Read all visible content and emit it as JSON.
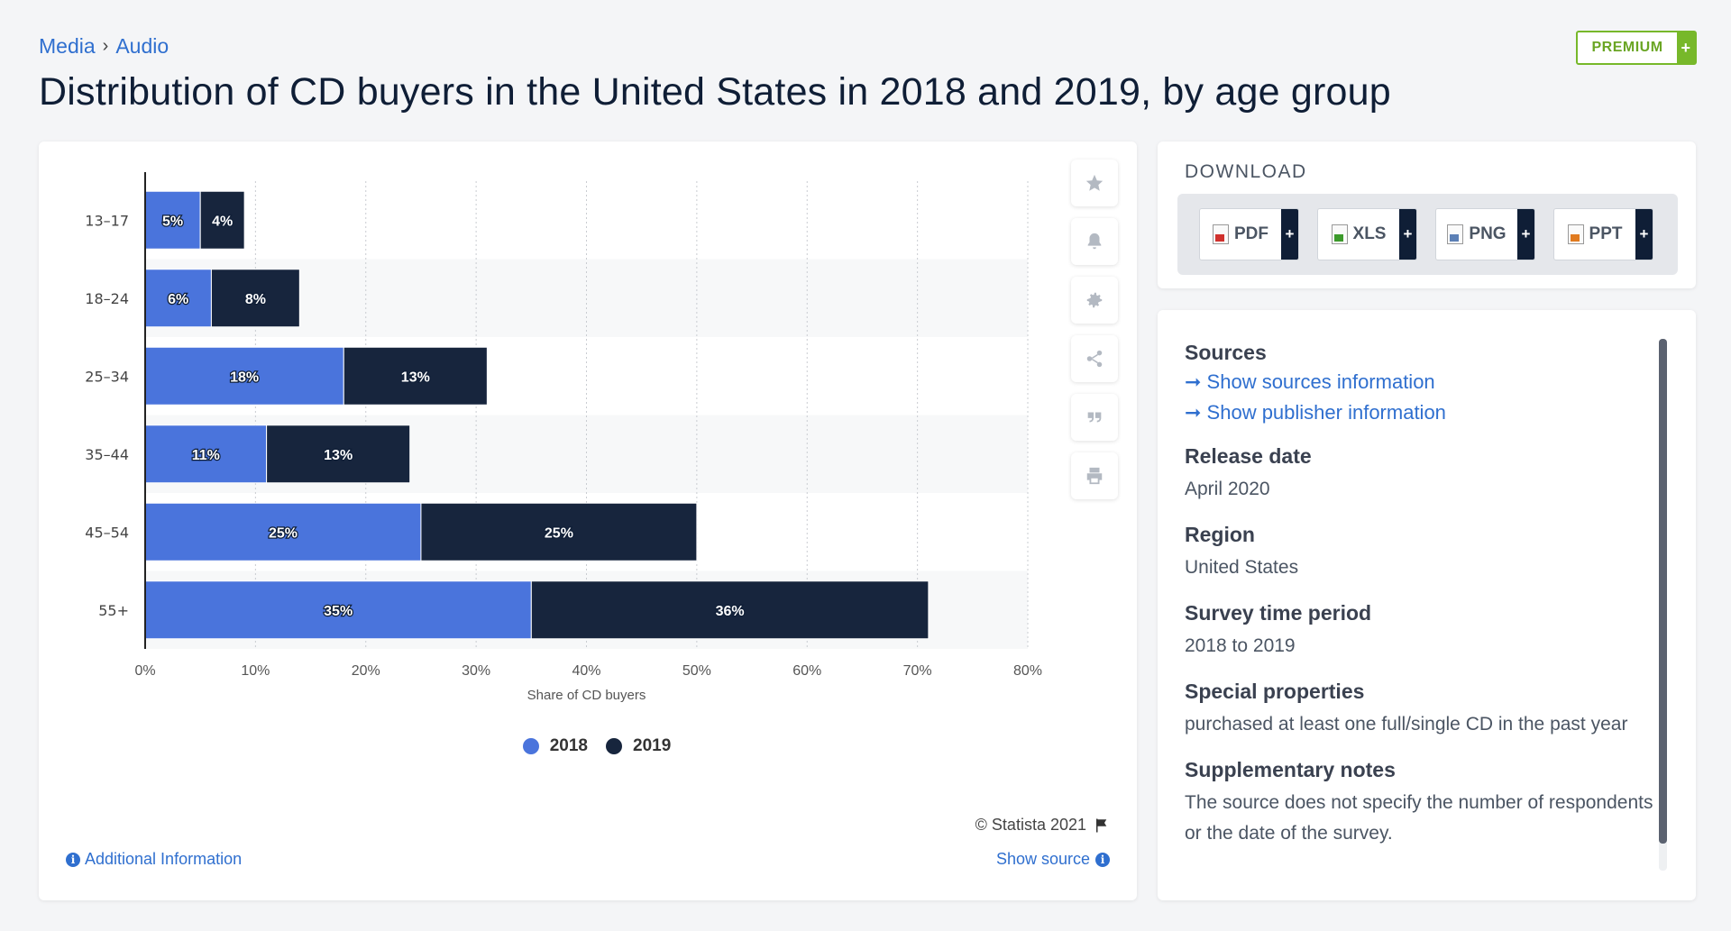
{
  "breadcrumb": {
    "level1": "Media",
    "separator": "›",
    "level2": "Audio"
  },
  "premium": {
    "label": "PREMIUM",
    "plus": "+"
  },
  "title": "Distribution of CD buyers in the United States in 2018 and 2019, by age group",
  "chart_data": {
    "type": "bar",
    "orientation": "horizontal",
    "stacked": true,
    "categories": [
      "13-17",
      "18-24",
      "25-34",
      "35-44",
      "45-54",
      "55+"
    ],
    "series": [
      {
        "name": "2018",
        "values": [
          5,
          6,
          18,
          11,
          25,
          35
        ],
        "labels": [
          "5%",
          "6%",
          "18%",
          "11%",
          "25%",
          "35%"
        ],
        "color": "#4a74dc"
      },
      {
        "name": "2019",
        "values": [
          4,
          8,
          13,
          13,
          25,
          36
        ],
        "labels": [
          "4%",
          "8%",
          "13%",
          "13%",
          "25%",
          "36%"
        ],
        "color": "#17253d"
      }
    ],
    "xlabel": "Share of CD buyers",
    "xlim": [
      0,
      80
    ],
    "xticks": [
      "0%",
      "10%",
      "20%",
      "30%",
      "40%",
      "50%",
      "60%",
      "70%",
      "80%"
    ],
    "grid": true,
    "legend": "bottom"
  },
  "legend": {
    "item1": "2018",
    "item2": "2019"
  },
  "chart_footer": {
    "copyright": "© Statista 2021",
    "additional_info": "Additional Information",
    "show_source": "Show source"
  },
  "toolbar": [
    "star-icon",
    "bell-icon",
    "gear-icon",
    "share-icon",
    "quote-icon",
    "print-icon"
  ],
  "download": {
    "title": "DOWNLOAD",
    "buttons": [
      {
        "label": "PDF",
        "plus": "+",
        "color": "#d0312d"
      },
      {
        "label": "XLS",
        "plus": "+",
        "color": "#3c9a2b"
      },
      {
        "label": "PNG",
        "plus": "+",
        "color": "#5b7fb5"
      },
      {
        "label": "PPT",
        "plus": "+",
        "color": "#e07a1f"
      }
    ]
  },
  "info": {
    "sources_heading": "Sources",
    "sources_link": "Show sources information",
    "publisher_link": "Show publisher information",
    "release_heading": "Release date",
    "release_value": "April 2020",
    "region_heading": "Region",
    "region_value": "United States",
    "period_heading": "Survey time period",
    "period_value": "2018 to 2019",
    "special_heading": "Special properties",
    "special_value": "purchased at least one full/single CD in the past year",
    "notes_heading": "Supplementary notes",
    "notes_value": "The source does not specify the number of respondents or the date of the survey."
  }
}
